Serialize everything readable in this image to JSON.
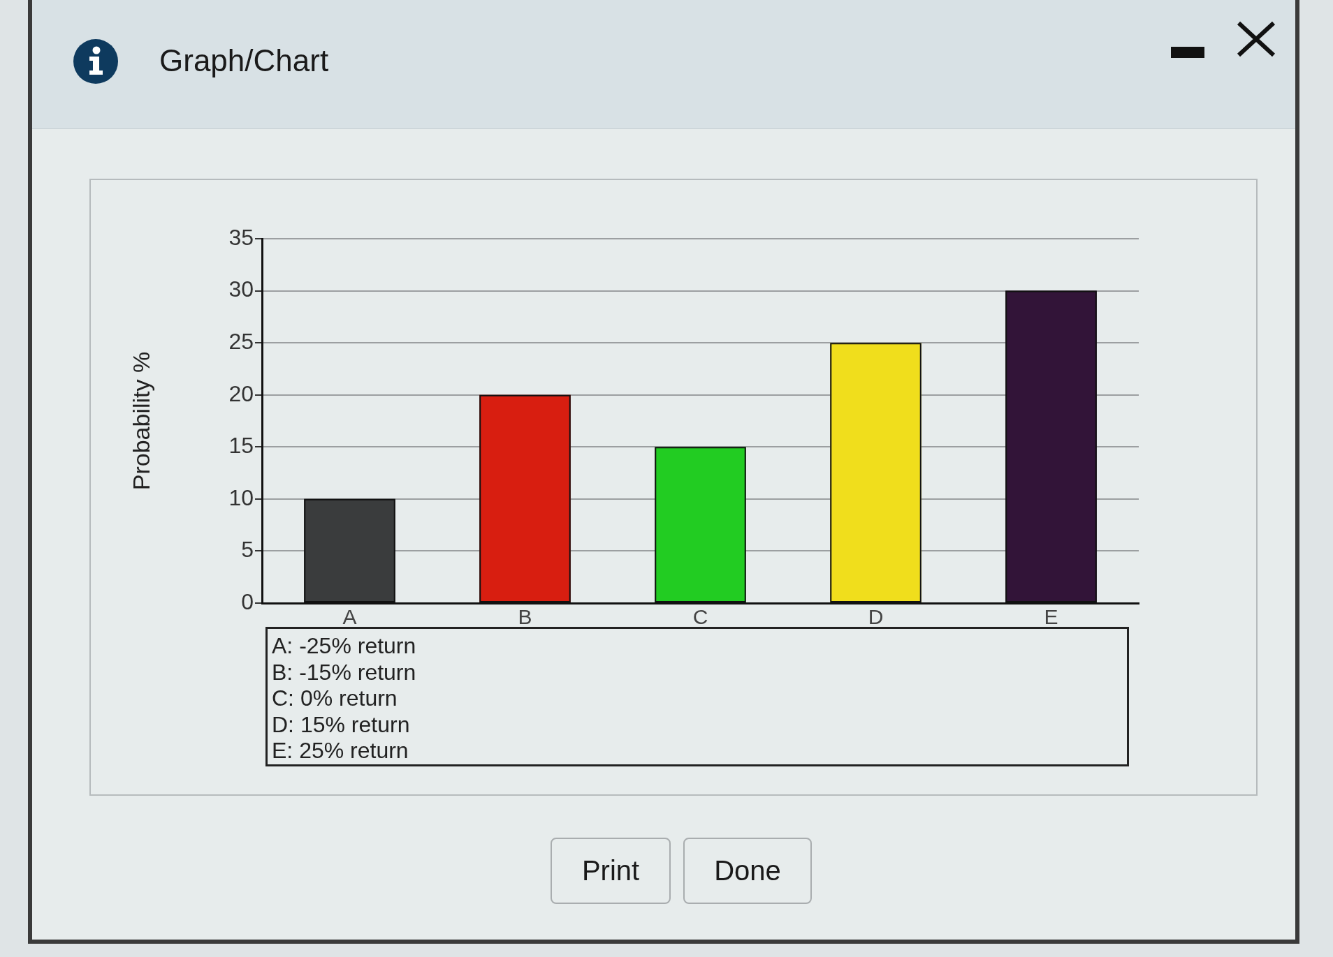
{
  "chart_data": {
    "type": "bar",
    "title": "Graph/Chart",
    "ylabel": "Probability %",
    "categories": [
      "A",
      "B",
      "C",
      "D",
      "E"
    ],
    "values": [
      10,
      20,
      15,
      25,
      30
    ],
    "colors": [
      "#3a3c3d",
      "#d81e10",
      "#22cc22",
      "#f0de1c",
      "#321438"
    ],
    "ylim": [
      0,
      35
    ],
    "yticks": [
      0,
      5,
      10,
      15,
      20,
      25,
      30,
      35
    ],
    "grid": "y",
    "annotations": [
      "A: -25% return",
      "B: -15% return",
      "C: 0% return",
      "D: 15% return",
      "E: 25% return",
      "Print",
      "Done"
    ]
  }
}
